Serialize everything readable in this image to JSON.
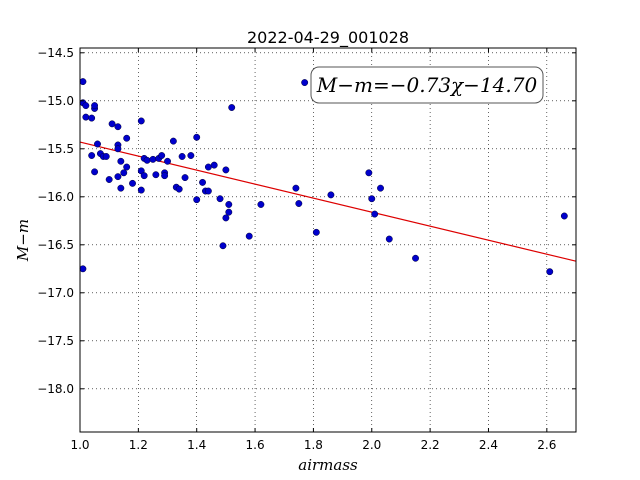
{
  "chart_data": {
    "type": "scatter",
    "title": "2022-04-29_001028",
    "xlabel": "airmass",
    "ylabel": "M−m",
    "xlim": [
      1.0,
      2.7
    ],
    "ylim": [
      -18.45,
      -14.45
    ],
    "y_inverted": true,
    "grid": true,
    "xticks": [
      "1.0",
      "1.2",
      "1.4",
      "1.6",
      "1.8",
      "2.0",
      "2.2",
      "2.4",
      "2.6"
    ],
    "yticks": [
      "−14.5",
      "−15.0",
      "−15.5",
      "−16.0",
      "−16.5",
      "−17.0",
      "−17.5",
      "−18.0"
    ],
    "annotation": "M−m=−0.73χ−14.70",
    "colors": {
      "points": "#0000cc",
      "fit_line": "#dd0000"
    },
    "fit": {
      "slope": -0.73,
      "intercept": -14.7
    },
    "points": [
      {
        "x": 1.01,
        "y": -14.8
      },
      {
        "x": 1.01,
        "y": -15.02
      },
      {
        "x": 1.02,
        "y": -15.05
      },
      {
        "x": 1.02,
        "y": -15.17
      },
      {
        "x": 1.04,
        "y": -15.18
      },
      {
        "x": 1.05,
        "y": -15.08
      },
      {
        "x": 1.05,
        "y": -15.05
      },
      {
        "x": 1.01,
        "y": -16.75
      },
      {
        "x": 1.04,
        "y": -15.57
      },
      {
        "x": 1.06,
        "y": -15.45
      },
      {
        "x": 1.05,
        "y": -15.74
      },
      {
        "x": 1.07,
        "y": -15.55
      },
      {
        "x": 1.08,
        "y": -15.58
      },
      {
        "x": 1.09,
        "y": -15.58
      },
      {
        "x": 1.1,
        "y": -15.82
      },
      {
        "x": 1.11,
        "y": -15.24
      },
      {
        "x": 1.13,
        "y": -15.27
      },
      {
        "x": 1.13,
        "y": -15.46
      },
      {
        "x": 1.13,
        "y": -15.5
      },
      {
        "x": 1.14,
        "y": -15.63
      },
      {
        "x": 1.14,
        "y": -15.91
      },
      {
        "x": 1.13,
        "y": -15.79
      },
      {
        "x": 1.15,
        "y": -15.75
      },
      {
        "x": 1.16,
        "y": -15.39
      },
      {
        "x": 1.16,
        "y": -15.69
      },
      {
        "x": 1.18,
        "y": -15.86
      },
      {
        "x": 1.21,
        "y": -15.21
      },
      {
        "x": 1.21,
        "y": -15.73
      },
      {
        "x": 1.21,
        "y": -15.93
      },
      {
        "x": 1.22,
        "y": -15.6
      },
      {
        "x": 1.23,
        "y": -15.62
      },
      {
        "x": 1.22,
        "y": -15.78
      },
      {
        "x": 1.25,
        "y": -15.61
      },
      {
        "x": 1.26,
        "y": -15.77
      },
      {
        "x": 1.27,
        "y": -15.6
      },
      {
        "x": 1.28,
        "y": -15.57
      },
      {
        "x": 1.29,
        "y": -15.75
      },
      {
        "x": 1.29,
        "y": -15.78
      },
      {
        "x": 1.3,
        "y": -15.63
      },
      {
        "x": 1.32,
        "y": -15.42
      },
      {
        "x": 1.33,
        "y": -15.9
      },
      {
        "x": 1.34,
        "y": -15.92
      },
      {
        "x": 1.35,
        "y": -15.58
      },
      {
        "x": 1.36,
        "y": -15.8
      },
      {
        "x": 1.38,
        "y": -15.57
      },
      {
        "x": 1.4,
        "y": -15.38
      },
      {
        "x": 1.4,
        "y": -16.03
      },
      {
        "x": 1.42,
        "y": -15.85
      },
      {
        "x": 1.43,
        "y": -15.94
      },
      {
        "x": 1.44,
        "y": -15.94
      },
      {
        "x": 1.44,
        "y": -15.69
      },
      {
        "x": 1.46,
        "y": -15.67
      },
      {
        "x": 1.48,
        "y": -16.02
      },
      {
        "x": 1.49,
        "y": -16.51
      },
      {
        "x": 1.5,
        "y": -16.22
      },
      {
        "x": 1.5,
        "y": -15.72
      },
      {
        "x": 1.51,
        "y": -16.08
      },
      {
        "x": 1.51,
        "y": -16.16
      },
      {
        "x": 1.52,
        "y": -15.07
      },
      {
        "x": 1.58,
        "y": -16.41
      },
      {
        "x": 1.62,
        "y": -16.08
      },
      {
        "x": 1.74,
        "y": -15.91
      },
      {
        "x": 1.75,
        "y": -16.07
      },
      {
        "x": 1.77,
        "y": -14.81
      },
      {
        "x": 1.81,
        "y": -16.37
      },
      {
        "x": 1.86,
        "y": -15.98
      },
      {
        "x": 1.99,
        "y": -15.75
      },
      {
        "x": 2.0,
        "y": -16.02
      },
      {
        "x": 2.01,
        "y": -16.18
      },
      {
        "x": 2.03,
        "y": -15.91
      },
      {
        "x": 2.06,
        "y": -16.44
      },
      {
        "x": 2.15,
        "y": -16.64
      },
      {
        "x": 2.61,
        "y": -16.78
      },
      {
        "x": 2.66,
        "y": -16.2
      }
    ]
  }
}
